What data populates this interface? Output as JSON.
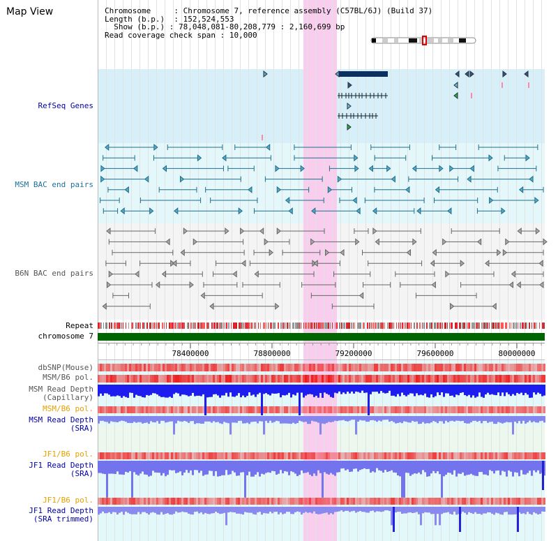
{
  "window": {
    "title": "Map View"
  },
  "header": {
    "chromosome_label": "Chromosome",
    "chromosome_value": "Chromosome 7, reference assembly (C57BL/6J) (Build 37)",
    "length_label": "Length (b.p.)",
    "length_value": "152,524,553",
    "show_label": "Show (b.p.)",
    "show_value": "78,048,081-80,208,779 : 2,160,699 bp",
    "coverage_label": "Read coverage check span",
    "coverage_value": "10,000"
  },
  "tracks": {
    "refseq": "RefSeq Genes",
    "msm_bac": "MSM BAC end pairs",
    "b6n_bac": "B6N BAC end pairs",
    "repeat": "Repeat",
    "chromosome": "chromosome 7",
    "dbsnp": "dbSNP(Mouse)",
    "msm_b6_pol_1": "MSM/B6 pol.",
    "msm_depth_cap_1": "MSM Read Depth",
    "msm_depth_cap_2": "(Capillary)",
    "msm_b6_pol_2": "MSM/B6 pol.",
    "msm_depth_sra_1": "MSM Read Depth",
    "msm_depth_sra_2": "(SRA)",
    "jf1_b6_pol_1": "JF1/B6 pol.",
    "jf1_depth_sra_1": "JF1 Read Depth",
    "jf1_depth_sra_2": "(SRA)",
    "jf1_b6_pol_2": "JF1/B6 pol.",
    "jf1_depth_trim_1": "JF1 Read Depth",
    "jf1_depth_trim_2": "(SRA trimmed)"
  },
  "ruler": {
    "ticks": [
      "78400000",
      "78800000",
      "79200000",
      "79600000",
      "80000000"
    ]
  },
  "colors": {
    "refseq_label": "#0000aa",
    "msm_label": "#1f6f99",
    "b6n_label": "#555555",
    "pol_label": "#e6a000",
    "sra_label": "#0000aa",
    "highlight": "#f5c6ec",
    "chromosome_bar": "#006400"
  }
}
